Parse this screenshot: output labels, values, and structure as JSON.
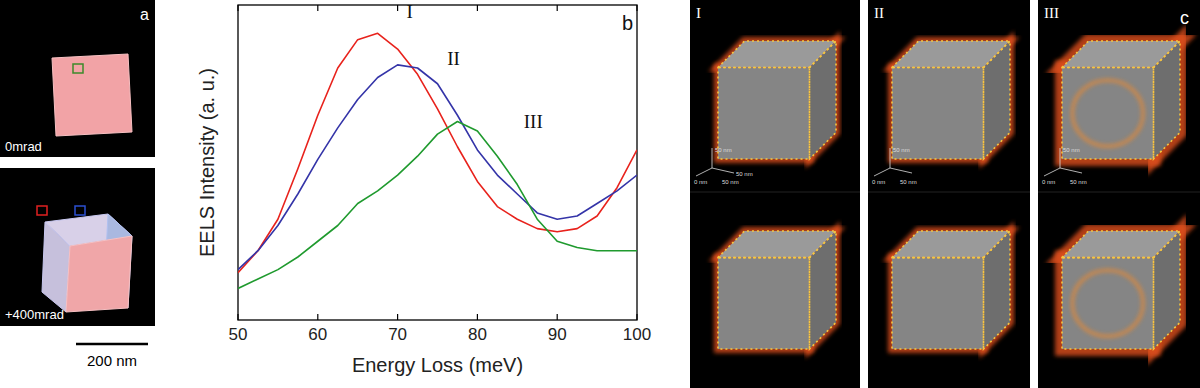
{
  "chart_data": {
    "type": "line",
    "panel_label": "b",
    "xlabel": "Energy Loss (meV)",
    "ylabel": "EELS Intensity (a. u.)",
    "x": [
      50,
      52.5,
      55,
      57.5,
      60,
      62.5,
      65,
      67.5,
      70,
      72.5,
      75,
      77.5,
      80,
      82.5,
      85,
      87.5,
      90,
      92.5,
      95,
      97.5,
      100
    ],
    "series": [
      {
        "name": "I",
        "color": "#e8221c",
        "values": [
          15,
          22,
          32,
          48,
          65,
          80,
          89,
          91,
          86,
          78,
          67,
          55,
          44,
          36,
          32,
          29,
          28,
          29,
          33,
          42,
          54
        ]
      },
      {
        "name": "II",
        "color": "#3434a8",
        "values": [
          16,
          22,
          30,
          40,
          51,
          61,
          70,
          77,
          81,
          80,
          75,
          65,
          54,
          46,
          40,
          34,
          32,
          33,
          37,
          41,
          46
        ]
      },
      {
        "name": "III",
        "color": "#1f9a2e",
        "values": [
          10,
          13,
          16,
          20,
          25,
          30,
          37,
          41,
          46,
          52,
          59,
          63,
          60,
          52,
          43,
          32,
          25,
          23,
          22,
          22,
          22
        ]
      }
    ],
    "annotations": [
      {
        "text": "I",
        "x": 71.5,
        "y": 96
      },
      {
        "text": "II",
        "x": 77,
        "y": 81
      },
      {
        "text": "III",
        "x": 87,
        "y": 61
      }
    ],
    "xlim": [
      50,
      100
    ],
    "ylim": [
      0,
      100
    ],
    "xticks": [
      50,
      60,
      70,
      80,
      90,
      100
    ],
    "tick_labels": "x",
    "grid": false
  },
  "panel_a": {
    "label": "a",
    "top_caption": "0mrad",
    "bottom_caption": "+400mrad",
    "scale_bar": "200 nm"
  },
  "panel_c": {
    "label": "c",
    "columns": [
      "I",
      "II",
      "III"
    ],
    "scale_labels": [
      "50 nm",
      "50 nm",
      "0 nm",
      "50 nm"
    ]
  }
}
